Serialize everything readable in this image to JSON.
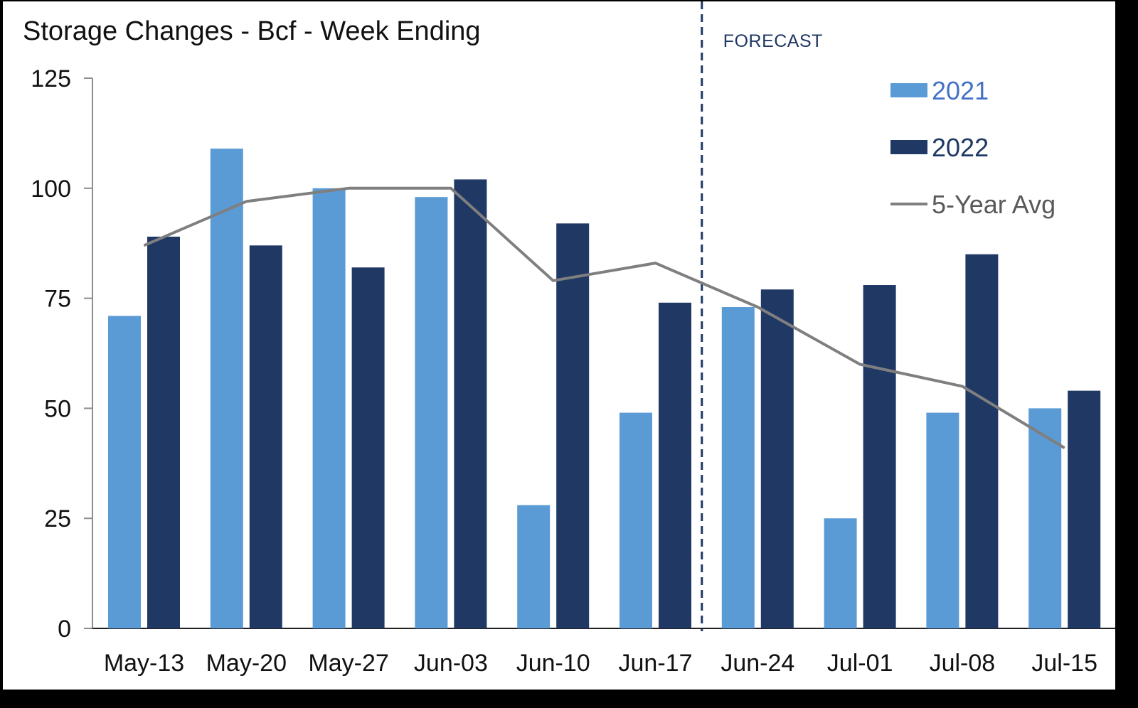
{
  "chart_data": {
    "type": "bar",
    "title": "Storage Changes - Bcf - Week Ending",
    "forecast_label": "FORECAST",
    "forecast_start_after": "Jun-17",
    "categories": [
      "May-13",
      "May-20",
      "May-27",
      "Jun-03",
      "Jun-10",
      "Jun-17",
      "Jun-24",
      "Jul-01",
      "Jul-08",
      "Jul-15"
    ],
    "series": [
      {
        "name": "2021",
        "type": "bar",
        "color": "#5b9bd5",
        "values": [
          71,
          109,
          100,
          98,
          28,
          49,
          73,
          25,
          49,
          50
        ]
      },
      {
        "name": "2022",
        "type": "bar",
        "color": "#203864",
        "values": [
          89,
          87,
          82,
          102,
          92,
          74,
          77,
          78,
          85,
          54
        ]
      },
      {
        "name": "5-Year Avg",
        "type": "line",
        "color": "#7f7f7f",
        "values": [
          87,
          97,
          100,
          100,
          79,
          83,
          73,
          60,
          55,
          41
        ]
      }
    ],
    "ylim": [
      0,
      125
    ],
    "yticks": [
      0,
      25,
      50,
      75,
      100,
      125
    ],
    "xlabel": "",
    "ylabel": "",
    "grid": false,
    "legend_position": "top-right"
  }
}
